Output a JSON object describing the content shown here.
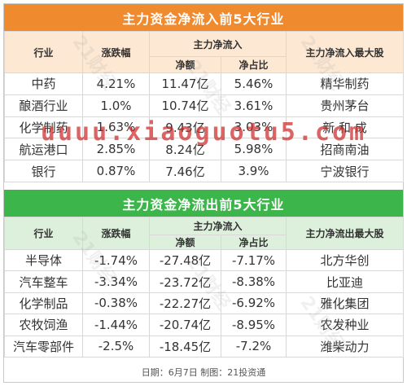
{
  "inflow": {
    "title": "主力资金净流入前5大行业",
    "headers": {
      "industry": "行业",
      "change": "涨跌幅",
      "group": "主力净流入",
      "net": "净额",
      "ratio": "净占比",
      "top_stock": "主力净流入最大股"
    },
    "rows": [
      {
        "industry": "中药",
        "change": "4.21%",
        "net": "11.47亿",
        "ratio": "5.46%",
        "stock": "精华制药"
      },
      {
        "industry": "酿酒行业",
        "change": "1.0%",
        "net": "10.74亿",
        "ratio": "3.61%",
        "stock": "贵州茅台"
      },
      {
        "industry": "化学制药",
        "change": "1.63%",
        "net": "9.43亿",
        "ratio": "3.03%",
        "stock": "新 和 成"
      },
      {
        "industry": "航运港口",
        "change": "2.85%",
        "net": "8.24亿",
        "ratio": "5.98%",
        "stock": "招商南油"
      },
      {
        "industry": "银行",
        "change": "0.87%",
        "net": "7.46亿",
        "ratio": "3.9%",
        "stock": "宁波银行"
      }
    ]
  },
  "outflow": {
    "title": "主力资金净流出前5大行业",
    "headers": {
      "industry": "行业",
      "change": "涨跌幅",
      "group": "主力净流入",
      "net": "净额",
      "ratio": "净占比",
      "top_stock": "主力净流出最大股"
    },
    "rows": [
      {
        "industry": "半导体",
        "change": "-1.74%",
        "net": "-27.48亿",
        "ratio": "-7.17%",
        "stock": "北方华创"
      },
      {
        "industry": "汽车整车",
        "change": "-3.34%",
        "net": "-23.72亿",
        "ratio": "-8.38%",
        "stock": "比亚迪"
      },
      {
        "industry": "化学制品",
        "change": "-0.38%",
        "net": "-22.27亿",
        "ratio": "-6.92%",
        "stock": "雅化集团"
      },
      {
        "industry": "农牧饲渔",
        "change": "-1.44%",
        "net": "-20.74亿",
        "ratio": "-8.95%",
        "stock": "农发种业"
      },
      {
        "industry": "汽车零部件",
        "change": "-2.5%",
        "net": "-18.45亿",
        "ratio": "-7.2%",
        "stock": "潍柴动力"
      }
    ]
  },
  "footer": "日期：6月7日  制图：21投资通",
  "watermark": "uuuu.xiaoguotu5.com",
  "stamp": "21财经"
}
